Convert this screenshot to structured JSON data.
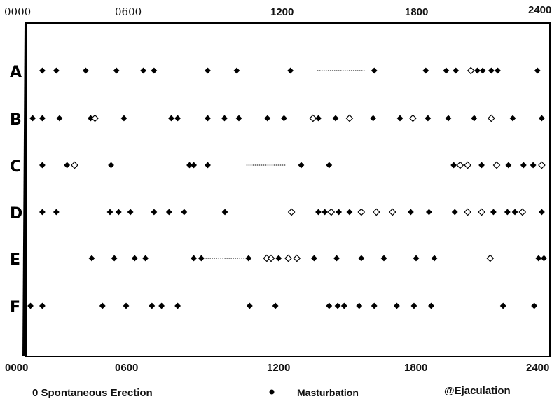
{
  "chart_data": {
    "type": "scatter",
    "top_ticks": [
      "0000",
      "0600",
      "1200",
      "1800",
      "2400"
    ],
    "bottom_ticks": [
      "0000",
      "0600",
      "1200",
      "1800",
      "2400"
    ],
    "xlim": [
      0,
      2400
    ],
    "legend": [
      {
        "label": "0 Spontaneous Erection",
        "marker": "none"
      },
      {
        "label": "Masturbation",
        "marker": "dot"
      },
      {
        "label": "@Ejaculation",
        "marker": "none"
      }
    ],
    "rows": [
      {
        "label": "A",
        "dotted": [
          [
            1340,
            1560
          ]
        ],
        "events": [
          {
            "t": 60,
            "k": "filled"
          },
          {
            "t": 125,
            "k": "filled"
          },
          {
            "t": 262,
            "k": "filled"
          },
          {
            "t": 405,
            "k": "filled"
          },
          {
            "t": 530,
            "k": "filled"
          },
          {
            "t": 580,
            "k": "filled"
          },
          {
            "t": 830,
            "k": "filled"
          },
          {
            "t": 965,
            "k": "filled"
          },
          {
            "t": 1215,
            "k": "filled"
          },
          {
            "t": 1605,
            "k": "filled"
          },
          {
            "t": 1845,
            "k": "filled"
          },
          {
            "t": 1940,
            "k": "filled"
          },
          {
            "t": 1985,
            "k": "filled"
          },
          {
            "t": 2055,
            "k": "open"
          },
          {
            "t": 2085,
            "k": "filled"
          },
          {
            "t": 2110,
            "k": "filled"
          },
          {
            "t": 2150,
            "k": "filled"
          },
          {
            "t": 2180,
            "k": "filled"
          },
          {
            "t": 2365,
            "k": "filled"
          }
        ]
      },
      {
        "label": "B",
        "dotted": [],
        "events": [
          {
            "t": 15,
            "k": "filled"
          },
          {
            "t": 60,
            "k": "filled"
          },
          {
            "t": 140,
            "k": "filled"
          },
          {
            "t": 285,
            "k": "filled"
          },
          {
            "t": 305,
            "k": "open"
          },
          {
            "t": 440,
            "k": "filled"
          },
          {
            "t": 660,
            "k": "filled"
          },
          {
            "t": 690,
            "k": "filled"
          },
          {
            "t": 830,
            "k": "filled"
          },
          {
            "t": 908,
            "k": "filled"
          },
          {
            "t": 975,
            "k": "filled"
          },
          {
            "t": 1108,
            "k": "filled"
          },
          {
            "t": 1185,
            "k": "filled"
          },
          {
            "t": 1320,
            "k": "open"
          },
          {
            "t": 1345,
            "k": "filled"
          },
          {
            "t": 1425,
            "k": "filled"
          },
          {
            "t": 1490,
            "k": "open"
          },
          {
            "t": 1600,
            "k": "filled"
          },
          {
            "t": 1725,
            "k": "filled"
          },
          {
            "t": 1785,
            "k": "open"
          },
          {
            "t": 1855,
            "k": "filled"
          },
          {
            "t": 1950,
            "k": "filled"
          },
          {
            "t": 2070,
            "k": "filled"
          },
          {
            "t": 2150,
            "k": "open"
          },
          {
            "t": 2250,
            "k": "filled"
          },
          {
            "t": 2385,
            "k": "filled"
          }
        ]
      },
      {
        "label": "C",
        "dotted": [
          [
            1010,
            1195
          ]
        ],
        "events": [
          {
            "t": 60,
            "k": "filled"
          },
          {
            "t": 175,
            "k": "filled"
          },
          {
            "t": 210,
            "k": "open"
          },
          {
            "t": 380,
            "k": "filled"
          },
          {
            "t": 745,
            "k": "filled"
          },
          {
            "t": 765,
            "k": "filled"
          },
          {
            "t": 830,
            "k": "filled"
          },
          {
            "t": 1265,
            "k": "filled"
          },
          {
            "t": 1395,
            "k": "filled"
          },
          {
            "t": 1975,
            "k": "filled"
          },
          {
            "t": 2005,
            "k": "open"
          },
          {
            "t": 2040,
            "k": "open"
          },
          {
            "t": 2105,
            "k": "filled"
          },
          {
            "t": 2175,
            "k": "open"
          },
          {
            "t": 2230,
            "k": "filled"
          },
          {
            "t": 2300,
            "k": "filled"
          },
          {
            "t": 2345,
            "k": "filled"
          },
          {
            "t": 2385,
            "k": "open"
          }
        ]
      },
      {
        "label": "D",
        "dotted": [],
        "events": [
          {
            "t": 60,
            "k": "filled"
          },
          {
            "t": 125,
            "k": "filled"
          },
          {
            "t": 375,
            "k": "filled"
          },
          {
            "t": 415,
            "k": "filled"
          },
          {
            "t": 470,
            "k": "filled"
          },
          {
            "t": 580,
            "k": "filled"
          },
          {
            "t": 650,
            "k": "filled"
          },
          {
            "t": 720,
            "k": "filled"
          },
          {
            "t": 910,
            "k": "filled"
          },
          {
            "t": 1220,
            "k": "open"
          },
          {
            "t": 1345,
            "k": "filled"
          },
          {
            "t": 1375,
            "k": "filled"
          },
          {
            "t": 1405,
            "k": "open"
          },
          {
            "t": 1440,
            "k": "filled"
          },
          {
            "t": 1490,
            "k": "filled"
          },
          {
            "t": 1545,
            "k": "open"
          },
          {
            "t": 1615,
            "k": "open"
          },
          {
            "t": 1690,
            "k": "open"
          },
          {
            "t": 1775,
            "k": "filled"
          },
          {
            "t": 1860,
            "k": "filled"
          },
          {
            "t": 1980,
            "k": "filled"
          },
          {
            "t": 2040,
            "k": "open"
          },
          {
            "t": 2105,
            "k": "open"
          },
          {
            "t": 2160,
            "k": "filled"
          },
          {
            "t": 2225,
            "k": "filled"
          },
          {
            "t": 2260,
            "k": "filled"
          },
          {
            "t": 2295,
            "k": "open"
          },
          {
            "t": 2385,
            "k": "filled"
          }
        ]
      },
      {
        "label": "E",
        "dotted": [
          [
            820,
            1010
          ]
        ],
        "events": [
          {
            "t": 290,
            "k": "filled"
          },
          {
            "t": 395,
            "k": "filled"
          },
          {
            "t": 490,
            "k": "filled"
          },
          {
            "t": 540,
            "k": "filled"
          },
          {
            "t": 765,
            "k": "filled"
          },
          {
            "t": 800,
            "k": "filled"
          },
          {
            "t": 1020,
            "k": "filled"
          },
          {
            "t": 1105,
            "k": "open"
          },
          {
            "t": 1125,
            "k": "open"
          },
          {
            "t": 1160,
            "k": "filled"
          },
          {
            "t": 1205,
            "k": "open"
          },
          {
            "t": 1245,
            "k": "open"
          },
          {
            "t": 1325,
            "k": "filled"
          },
          {
            "t": 1430,
            "k": "filled"
          },
          {
            "t": 1545,
            "k": "filled"
          },
          {
            "t": 1650,
            "k": "filled"
          },
          {
            "t": 1800,
            "k": "filled"
          },
          {
            "t": 1885,
            "k": "filled"
          },
          {
            "t": 2145,
            "k": "open"
          },
          {
            "t": 2370,
            "k": "filled"
          },
          {
            "t": 2395,
            "k": "filled"
          }
        ]
      },
      {
        "label": "F",
        "dotted": [],
        "events": [
          {
            "t": 5,
            "k": "filled"
          },
          {
            "t": 60,
            "k": "filled"
          },
          {
            "t": 340,
            "k": "filled"
          },
          {
            "t": 450,
            "k": "filled"
          },
          {
            "t": 570,
            "k": "filled"
          },
          {
            "t": 615,
            "k": "filled"
          },
          {
            "t": 690,
            "k": "filled"
          },
          {
            "t": 1025,
            "k": "filled"
          },
          {
            "t": 1145,
            "k": "filled"
          },
          {
            "t": 1395,
            "k": "filled"
          },
          {
            "t": 1435,
            "k": "filled"
          },
          {
            "t": 1465,
            "k": "filled"
          },
          {
            "t": 1535,
            "k": "filled"
          },
          {
            "t": 1605,
            "k": "filled"
          },
          {
            "t": 1710,
            "k": "filled"
          },
          {
            "t": 1790,
            "k": "filled"
          },
          {
            "t": 1870,
            "k": "filled"
          },
          {
            "t": 2205,
            "k": "filled"
          },
          {
            "t": 2350,
            "k": "filled"
          }
        ]
      }
    ]
  }
}
